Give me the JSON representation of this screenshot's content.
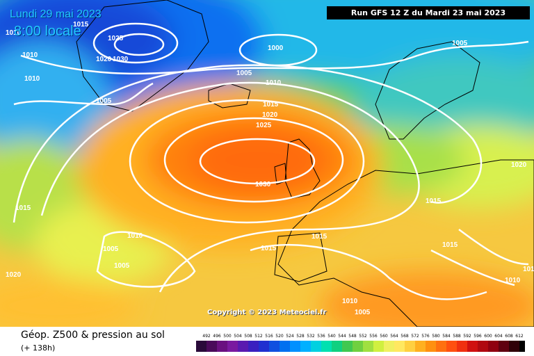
{
  "overlay": {
    "date": "Lundi 29 mai 2023",
    "time": "8:00 locale",
    "run": "Run GFS 12 Z du Mardi 23 mai 2023",
    "copyright": "Copyright © 2023 Meteociel.fr"
  },
  "footer": {
    "title": "Géop. Z500 & pression au sol",
    "subtitle": "(+ 138h)"
  },
  "legend": {
    "values": [
      "492",
      "496",
      "500",
      "504",
      "508",
      "512",
      "516",
      "520",
      "524",
      "528",
      "532",
      "536",
      "540",
      "544",
      "548",
      "552",
      "556",
      "560",
      "564",
      "568",
      "572",
      "576",
      "580",
      "584",
      "588",
      "592",
      "596",
      "600",
      "604",
      "608",
      "612"
    ],
    "colors": [
      "#2a0a3a",
      "#4a0a5a",
      "#6a1080",
      "#7a1aa0",
      "#5a1ab0",
      "#3a20c0",
      "#2030d0",
      "#1050e0",
      "#0070f0",
      "#0090ff",
      "#00b0ff",
      "#00d0e0",
      "#00e0b0",
      "#10d080",
      "#40c850",
      "#70d040",
      "#a0e040",
      "#d0f040",
      "#f0f060",
      "#ffe860",
      "#ffd040",
      "#ffb020",
      "#ff9010",
      "#ff7010",
      "#ff5010",
      "#f03010",
      "#d01010",
      "#b00810",
      "#900010",
      "#600010",
      "#300008",
      "#000000"
    ]
  },
  "isobars": {
    "labels": [
      "1010",
      "1015",
      "1025",
      "1020",
      "1030",
      "1010",
      "1010",
      "1005",
      "1000",
      "1005",
      "1010",
      "1015",
      "1020",
      "1025",
      "1030",
      "1005",
      "1020",
      "1015",
      "1015",
      "1015",
      "1015",
      "1010",
      "1005",
      "1005",
      "1020",
      "1015",
      "1010",
      "1010",
      "1005",
      "1010"
    ]
  },
  "colors": {
    "isobar": "#ffffff",
    "coast": "#000000",
    "run_box_bg": "#000000",
    "overlay_text": "#22c8ff"
  }
}
